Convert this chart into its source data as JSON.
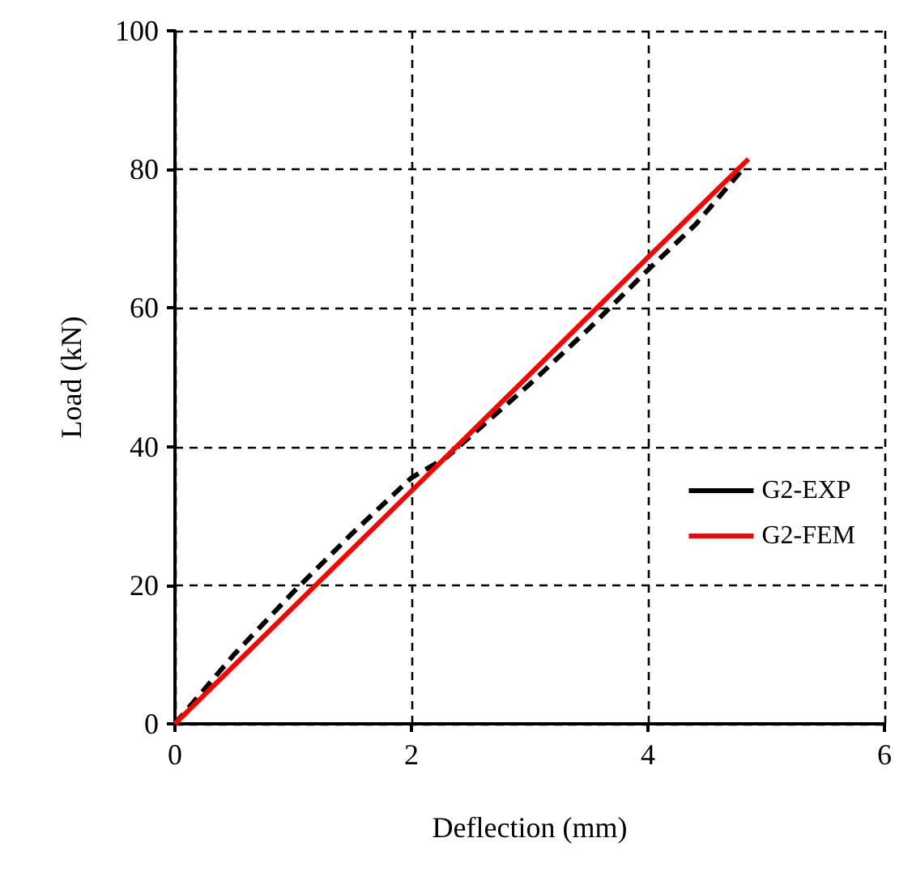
{
  "chart_data": {
    "type": "line",
    "xlabel": "Deflection (mm)",
    "ylabel": "Load (kN)",
    "xlim": [
      0,
      6
    ],
    "xticks": [
      0,
      2,
      4,
      6
    ],
    "ylim": [
      0,
      100
    ],
    "yticks": [
      0,
      20,
      40,
      60,
      80,
      100
    ],
    "grid": true,
    "legend": "right",
    "marker": "none",
    "series": [
      {
        "name": "G2-EXP",
        "color": "#000000",
        "line_style": "dashed",
        "x": [
          0,
          0.5,
          1,
          1.5,
          2,
          2.3,
          2.6,
          3,
          3.5,
          4,
          4.4,
          4.8
        ],
        "values": [
          0,
          10,
          19,
          27.5,
          35.5,
          38.5,
          43,
          49,
          57,
          65.5,
          72,
          80
        ]
      },
      {
        "name": "G2-FEM",
        "color": "#ff0000",
        "line_style": "solid",
        "x": [
          0,
          1,
          2,
          3,
          4,
          4.85
        ],
        "values": [
          0,
          16.8,
          33.6,
          50.4,
          67.3,
          81.5
        ]
      }
    ]
  }
}
